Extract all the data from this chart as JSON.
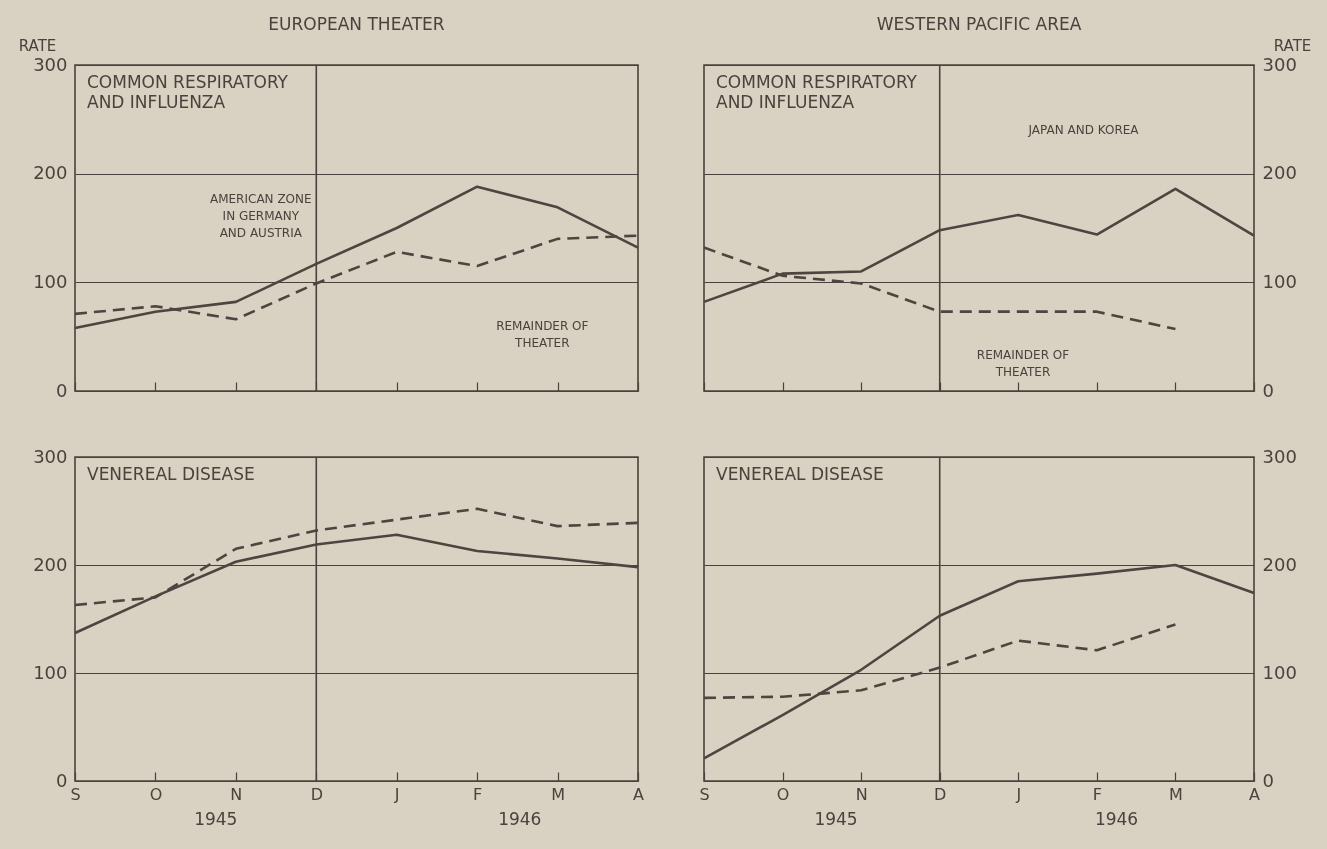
{
  "chart_data": [
    {
      "type": "line",
      "title": "EUROPEAN THEATER",
      "subtitle": "COMMON RESPIRATORY\nAND INFLUENZA",
      "ylabel": "RATE",
      "categories": [
        "S",
        "O",
        "N",
        "D",
        "J",
        "F",
        "M",
        "A"
      ],
      "tick_labels": "y",
      "ylim": [
        0,
        300
      ],
      "yticks": [
        0,
        100,
        200,
        300
      ],
      "grid": "y",
      "series": [
        {
          "color": "#4d4640",
          "line_style": "solid",
          "values": [
            58,
            73,
            82,
            117,
            150,
            188,
            169,
            132
          ]
        },
        {
          "color": "#4d4640",
          "line_style": "dashed",
          "values": [
            71,
            78,
            66,
            99,
            128,
            115,
            140,
            143
          ]
        }
      ],
      "ref_lines": [
        {
          "axis": "x",
          "value": "D"
        }
      ],
      "annotations": [
        "AMERICAN ZONE\nIN GERMANY\nAND AUSTRIA",
        "REMAINDER OF\nTHEATER"
      ]
    },
    {
      "type": "line",
      "title": "WESTERN PACIFIC AREA",
      "subtitle": "COMMON RESPIRATORY\nAND INFLUENZA",
      "y2label": "RATE",
      "categories": [
        "S",
        "O",
        "N",
        "D",
        "J",
        "F",
        "M",
        "A"
      ],
      "tick_labels": "y",
      "y2lim": [
        0,
        300
      ],
      "y2ticks": [
        0,
        100,
        200,
        300
      ],
      "grid": "y",
      "series": [
        {
          "color": "#4d4640",
          "line_style": "solid",
          "axis": "y2",
          "values": [
            82,
            108,
            110,
            148,
            162,
            144,
            186,
            143
          ]
        },
        {
          "color": "#4d4640",
          "line_style": "dashed",
          "axis": "y2",
          "values": [
            132,
            106,
            99,
            73,
            73,
            73,
            57,
            null
          ]
        }
      ],
      "ref_lines": [
        {
          "axis": "x",
          "value": "D"
        }
      ],
      "annotations": [
        "JAPAN AND KOREA",
        "REMAINDER OF\nTHEATER"
      ]
    },
    {
      "type": "line",
      "subtitle": "VENEREAL DISEASE",
      "categories": [
        "S",
        "O",
        "N",
        "D",
        "J",
        "F",
        "M",
        "A"
      ],
      "ylim": [
        0,
        300
      ],
      "yticks": [
        0,
        100,
        200,
        300
      ],
      "grid": "y",
      "series": [
        {
          "color": "#4d4640",
          "line_style": "solid",
          "values": [
            137,
            171,
            203,
            219,
            228,
            213,
            206,
            198
          ]
        },
        {
          "color": "#4d4640",
          "line_style": "dashed",
          "values": [
            163,
            170,
            215,
            232,
            242,
            252,
            236,
            239
          ]
        }
      ],
      "ref_lines": [
        {
          "axis": "x",
          "value": "D"
        }
      ],
      "annotations": [
        "1945",
        "1946"
      ]
    },
    {
      "type": "line",
      "subtitle": "VENEREAL DISEASE",
      "categories": [
        "S",
        "O",
        "N",
        "D",
        "J",
        "F",
        "M",
        "A"
      ],
      "y2lim": [
        0,
        300
      ],
      "y2ticks": [
        0,
        100,
        200,
        300
      ],
      "grid": "y",
      "series": [
        {
          "color": "#4d4640",
          "line_style": "solid",
          "axis": "y2",
          "values": [
            21,
            61,
            103,
            153,
            185,
            192,
            200,
            174
          ]
        },
        {
          "color": "#4d4640",
          "line_style": "dashed",
          "axis": "y2",
          "values": [
            77,
            78,
            84,
            105,
            130,
            121,
            145,
            null
          ]
        }
      ],
      "ref_lines": [
        {
          "axis": "x",
          "value": "D"
        }
      ],
      "annotations": [
        "1945",
        "1946"
      ]
    }
  ]
}
